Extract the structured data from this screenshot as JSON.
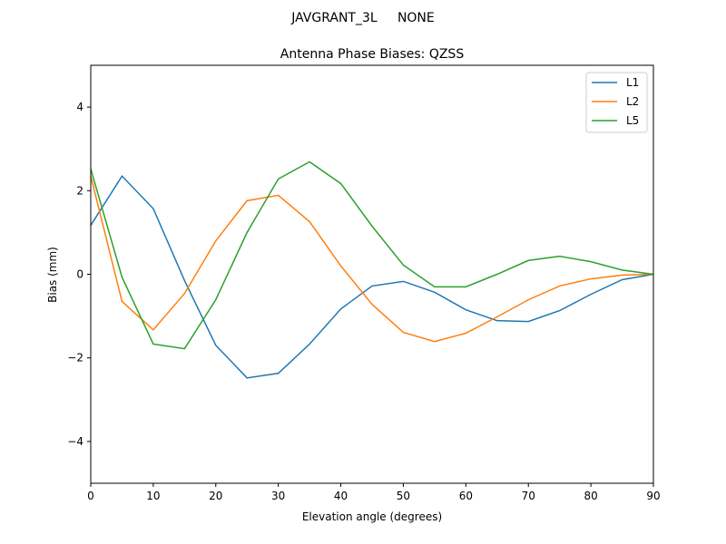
{
  "chart_data": {
    "type": "line",
    "suptitle": "JAVGRANT_3L     NONE",
    "title": "Antenna Phase Biases: QZSS",
    "xlabel": "Elevation angle (degrees)",
    "ylabel": "Bias (mm)",
    "xlim": [
      0,
      90
    ],
    "ylim": [
      -5,
      5
    ],
    "xticks": [
      0,
      10,
      20,
      30,
      40,
      50,
      60,
      70,
      80,
      90
    ],
    "yticks": [
      -4,
      -2,
      0,
      2,
      4
    ],
    "ytick_labels": [
      "−4",
      "−2",
      "0",
      "2",
      "4"
    ],
    "grid": false,
    "legend_position": "top-right",
    "x": [
      0,
      5,
      10,
      15,
      20,
      25,
      30,
      35,
      40,
      45,
      50,
      55,
      60,
      65,
      70,
      75,
      80,
      85,
      90
    ],
    "series": [
      {
        "name": "L1",
        "color": "#1f77b4",
        "values": [
          1.17,
          2.35,
          1.57,
          -0.15,
          -1.7,
          -2.48,
          -2.37,
          -1.67,
          -0.83,
          -0.28,
          -0.17,
          -0.43,
          -0.85,
          -1.11,
          -1.13,
          -0.87,
          -0.48,
          -0.13,
          0.0
        ]
      },
      {
        "name": "L2",
        "color": "#ff7f0e",
        "values": [
          2.35,
          -0.65,
          -1.33,
          -0.46,
          0.8,
          1.76,
          1.89,
          1.26,
          0.2,
          -0.72,
          -1.39,
          -1.61,
          -1.41,
          -1.02,
          -0.61,
          -0.28,
          -0.11,
          -0.02,
          0.0
        ]
      },
      {
        "name": "L5",
        "color": "#2ca02c",
        "values": [
          2.52,
          -0.07,
          -1.67,
          -1.78,
          -0.61,
          1.0,
          2.28,
          2.69,
          2.17,
          1.15,
          0.22,
          -0.3,
          -0.3,
          0.0,
          0.33,
          0.43,
          0.3,
          0.1,
          0.0
        ]
      }
    ]
  }
}
